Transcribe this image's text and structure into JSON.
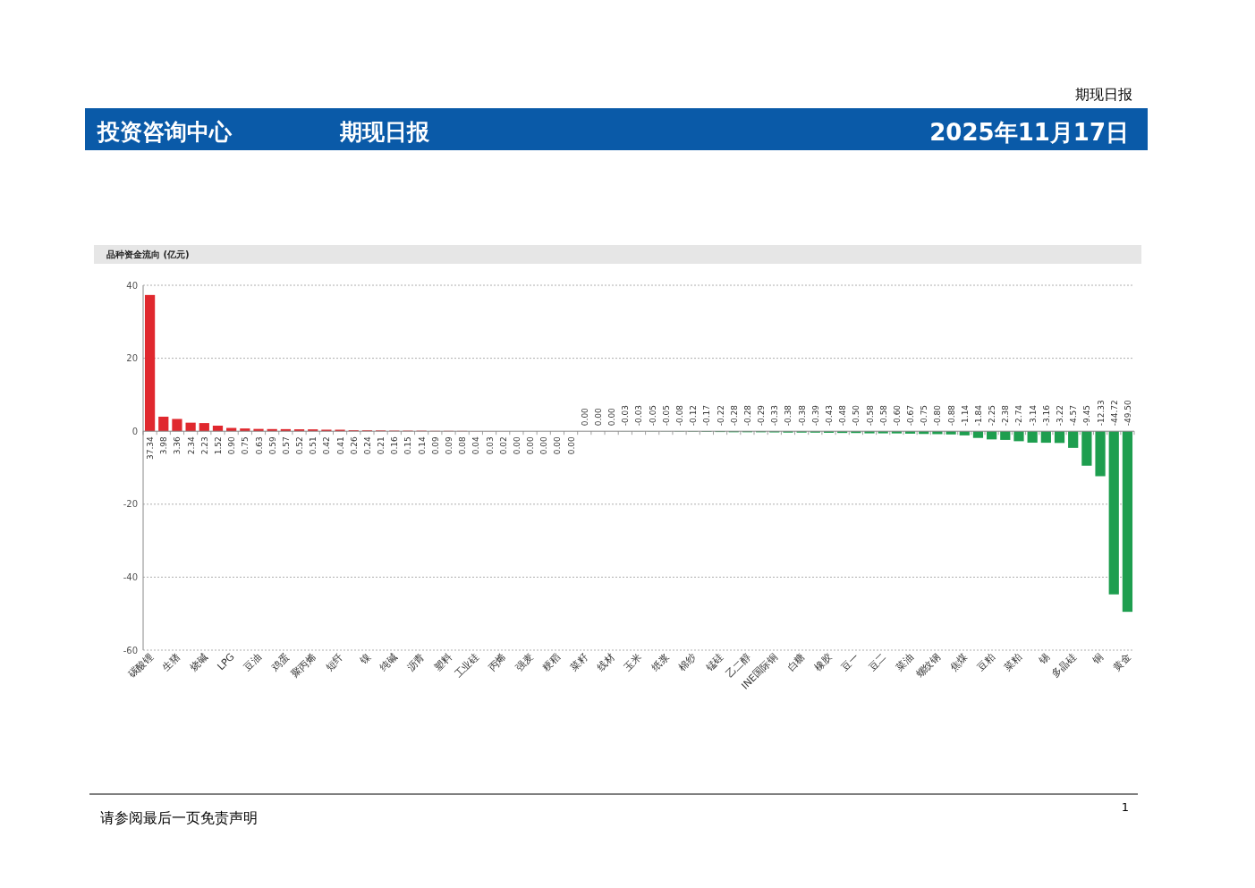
{
  "chart_data": {
    "type": "bar",
    "title": "品种资金流向 (亿元)",
    "annotations": [
      "期现日报",
      "投资咨询中心",
      "期现日报",
      "2025年11月17日",
      "请参阅最后一页免责声明",
      "1"
    ],
    "categories": [
      "碳酸锂",
      null,
      "生猪",
      null,
      "烧碱",
      null,
      "LPG",
      null,
      "豆油",
      null,
      "鸡蛋",
      null,
      "聚丙烯",
      null,
      "短纤",
      null,
      "镍",
      null,
      "纯碱",
      null,
      "沥青",
      null,
      "塑料",
      null,
      "工业硅",
      null,
      "丙烯",
      null,
      "强麦",
      null,
      "粳稻",
      null,
      "菜籽",
      null,
      "线材",
      null,
      "玉米",
      null,
      "纸浆",
      null,
      "棉纱",
      null,
      "锰硅",
      null,
      "乙二醇",
      null,
      "INE国际铜",
      null,
      "白糖",
      null,
      "橡胶",
      null,
      "豆一",
      null,
      "豆二",
      null,
      "菜油",
      null,
      "螺纹钢",
      null,
      "焦煤",
      null,
      "豆粕",
      null,
      "菜粕",
      null,
      "锡",
      null,
      "多晶硅",
      null,
      "铜",
      null,
      "黄金"
    ],
    "values": [
      37.34,
      3.98,
      3.36,
      2.34,
      2.23,
      1.52,
      0.9,
      0.75,
      0.63,
      0.59,
      0.57,
      0.52,
      0.51,
      0.42,
      0.41,
      0.26,
      0.24,
      0.21,
      0.16,
      0.15,
      0.14,
      0.09,
      0.09,
      0.08,
      0.04,
      0.03,
      0.02,
      0,
      0,
      0,
      0,
      0,
      -0.0,
      -0.0,
      -0.0,
      -0.03,
      -0.03,
      -0.05,
      -0.05,
      -0.08,
      -0.12,
      -0.17,
      -0.22,
      -0.28,
      -0.28,
      -0.29,
      -0.33,
      -0.38,
      -0.38,
      -0.39,
      -0.43,
      -0.48,
      -0.5,
      -0.58,
      -0.58,
      -0.6,
      -0.67,
      -0.75,
      -0.8,
      -0.88,
      -1.14,
      -1.84,
      -2.25,
      -2.38,
      -2.74,
      -3.14,
      -3.16,
      -3.22,
      -4.57,
      -9.45,
      -12.33,
      -44.72,
      -49.5
    ],
    "colors": [
      "#e0282e",
      "#e0282e",
      "#e0282e",
      "#e0282e",
      "#e0282e",
      "#e0282e",
      "#e0282e",
      "#e0282e",
      "#e0282e",
      "#e0282e",
      "#e0282e",
      "#e0282e",
      "#e0282e",
      "#e0282e",
      "#e0282e",
      "#e0282e",
      "#e0282e",
      "#e0282e",
      "#e0282e",
      "#e0282e",
      "#e0282e",
      "#e0282e",
      "#e0282e",
      "#e0282e",
      "#e0282e",
      "#e0282e",
      "#e0282e",
      "#e0282e",
      "#e0282e",
      "#e0282e",
      "#e0282e",
      "#e0282e",
      "#1e9e4f",
      "#1e9e4f",
      "#1e9e4f",
      "#1e9e4f",
      "#1e9e4f",
      "#1e9e4f",
      "#1e9e4f",
      "#1e9e4f",
      "#1e9e4f",
      "#1e9e4f",
      "#1e9e4f",
      "#1e9e4f",
      "#1e9e4f",
      "#1e9e4f",
      "#1e9e4f",
      "#1e9e4f",
      "#1e9e4f",
      "#1e9e4f",
      "#1e9e4f",
      "#1e9e4f",
      "#1e9e4f",
      "#1e9e4f",
      "#1e9e4f",
      "#1e9e4f",
      "#1e9e4f",
      "#1e9e4f",
      "#1e9e4f",
      "#1e9e4f",
      "#1e9e4f",
      "#1e9e4f",
      "#1e9e4f",
      "#1e9e4f",
      "#1e9e4f",
      "#1e9e4f",
      "#1e9e4f",
      "#1e9e4f",
      "#1e9e4f",
      "#1e9e4f",
      "#1e9e4f",
      "#1e9e4f",
      "#1e9e4f"
    ],
    "value_labels": [
      "37.34",
      "3.98",
      "3.36",
      "2.34",
      "2.23",
      "1.52",
      "0.90",
      "0.75",
      "0.63",
      "0.59",
      "0.57",
      "0.52",
      "0.51",
      "0.42",
      "0.41",
      "0.26",
      "0.24",
      "0.21",
      "0.16",
      "0.15",
      "0.14",
      "0.09",
      "0.09",
      "0.08",
      "0.04",
      "0.03",
      "0.02",
      "0.00",
      "0.00",
      "0.00",
      "0.00",
      "0.00",
      "0.00",
      "0.00",
      "0.00",
      "-0.03",
      "-0.03",
      "-0.05",
      "-0.05",
      "-0.08",
      "-0.12",
      "-0.17",
      "-0.22",
      "-0.28",
      "-0.28",
      "-0.29",
      "-0.33",
      "-0.38",
      "-0.38",
      "-0.39",
      "-0.43",
      "-0.48",
      "-0.50",
      "-0.58",
      "-0.58",
      "-0.60",
      "-0.67",
      "-0.75",
      "-0.80",
      "-0.88",
      "-1.14",
      "-1.84",
      "-2.25",
      "-2.38",
      "-2.74",
      "-3.14",
      "-3.16",
      "-3.22",
      "-4.57",
      "-9.45",
      "-12.33",
      "-44.72",
      "-49.50"
    ],
    "ylim": [
      -60,
      40
    ],
    "yticks": [
      -60,
      -40,
      -20,
      0,
      20,
      40
    ],
    "grid": "y"
  }
}
